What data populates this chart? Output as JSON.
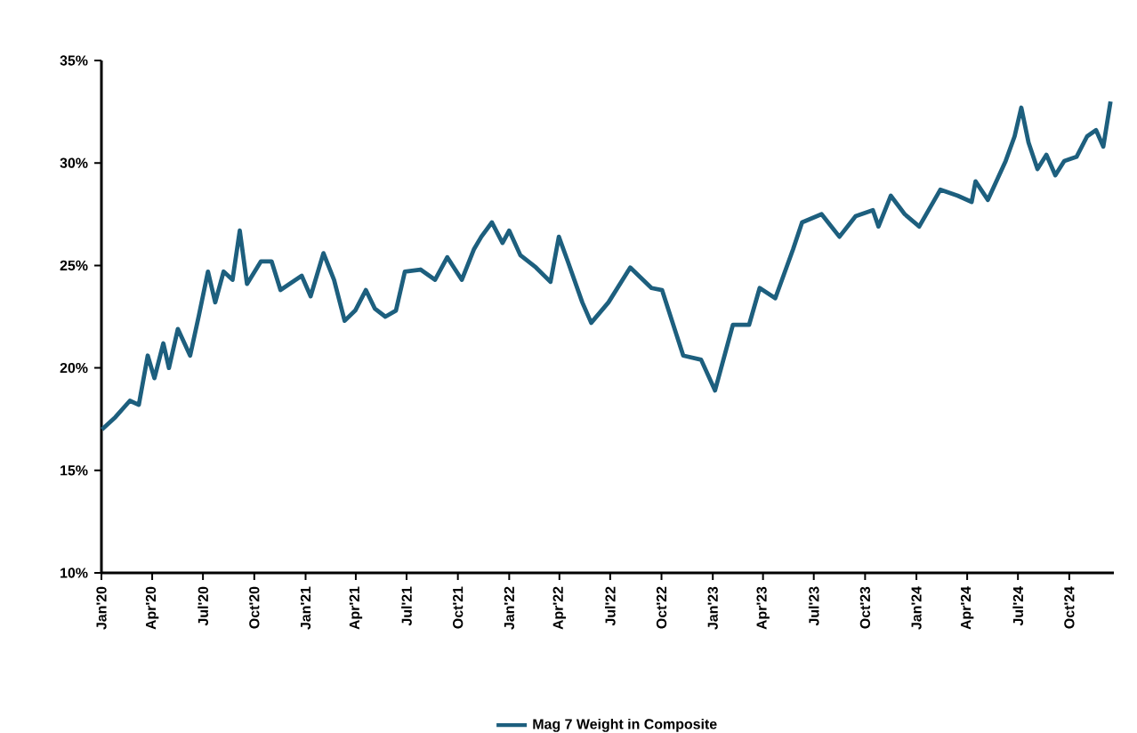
{
  "chart_data": {
    "type": "line",
    "x": [
      "2020-01-02",
      "2020-01-26",
      "2020-02-21",
      "2020-03-08",
      "2020-03-24",
      "2020-04-05",
      "2020-04-21",
      "2020-05-01",
      "2020-05-17",
      "2020-06-08",
      "2020-06-24",
      "2020-07-10",
      "2020-07-23",
      "2020-08-07",
      "2020-08-23",
      "2020-09-05",
      "2020-09-18",
      "2020-10-13",
      "2020-11-01",
      "2020-11-17",
      "2020-12-25",
      "2021-01-10",
      "2021-02-02",
      "2021-02-21",
      "2021-03-12",
      "2021-03-31",
      "2021-04-19",
      "2021-05-05",
      "2021-05-24",
      "2021-06-12",
      "2021-06-28",
      "2021-07-26",
      "2021-08-21",
      "2021-09-12",
      "2021-10-08",
      "2021-10-30",
      "2021-11-12",
      "2021-12-01",
      "2021-12-20",
      "2022-01-01",
      "2022-01-21",
      "2022-02-18",
      "2022-03-16",
      "2022-03-31",
      "2022-04-16",
      "2022-05-12",
      "2022-05-28",
      "2022-06-28",
      "2022-08-06",
      "2022-09-13",
      "2022-10-02",
      "2022-11-09",
      "2022-12-11",
      "2023-01-05",
      "2023-02-06",
      "2023-03-07",
      "2023-03-26",
      "2023-04-23",
      "2023-05-25",
      "2023-06-10",
      "2023-07-15",
      "2023-08-16",
      "2023-09-14",
      "2023-10-15",
      "2023-10-25",
      "2023-11-16",
      "2023-12-11",
      "2024-01-06",
      "2024-02-13",
      "2024-03-15",
      "2024-04-09",
      "2024-04-16",
      "2024-05-08",
      "2024-06-09",
      "2024-06-25",
      "2024-07-07",
      "2024-07-20",
      "2024-08-05",
      "2024-08-21",
      "2024-09-06",
      "2024-09-22",
      "2024-10-14",
      "2024-11-02",
      "2024-11-18",
      "2024-12-01",
      "2024-12-14"
    ],
    "series": [
      {
        "name": "Mag 7 Weight in Composite",
        "color": "#1d5f7e",
        "values": [
          17.0,
          17.6,
          18.4,
          18.2,
          20.6,
          19.5,
          21.2,
          20.0,
          21.9,
          20.6,
          22.6,
          24.7,
          23.2,
          24.7,
          24.3,
          26.7,
          24.1,
          25.2,
          25.2,
          23.8,
          24.5,
          23.5,
          25.6,
          24.3,
          22.3,
          22.8,
          23.8,
          22.9,
          22.5,
          22.8,
          24.7,
          24.8,
          24.3,
          25.4,
          24.3,
          25.8,
          26.4,
          27.1,
          26.1,
          26.7,
          25.5,
          24.9,
          24.2,
          26.4,
          25.2,
          23.2,
          22.2,
          23.2,
          24.9,
          23.9,
          23.8,
          20.6,
          20.4,
          18.9,
          22.1,
          22.1,
          23.9,
          23.4,
          25.8,
          27.1,
          27.5,
          26.4,
          27.4,
          27.7,
          26.9,
          28.4,
          27.5,
          26.9,
          28.7,
          28.4,
          28.1,
          29.1,
          28.2,
          30.1,
          31.3,
          32.7,
          31.0,
          29.7,
          30.4,
          29.4,
          30.1,
          30.3,
          31.3,
          31.6,
          30.8,
          33.0
        ]
      }
    ],
    "xlim": [
      "2020-01-01",
      "2024-12-20"
    ],
    "xticks": [
      {
        "value": "2020-01-01",
        "label": "Jan'20"
      },
      {
        "value": "2020-04-01",
        "label": "Apr'20"
      },
      {
        "value": "2020-07-01",
        "label": "Jul'20"
      },
      {
        "value": "2020-10-01",
        "label": "Oct'20"
      },
      {
        "value": "2021-01-01",
        "label": "Jan'21"
      },
      {
        "value": "2021-04-01",
        "label": "Apr'21"
      },
      {
        "value": "2021-07-01",
        "label": "Jul'21"
      },
      {
        "value": "2021-10-01",
        "label": "Oct'21"
      },
      {
        "value": "2022-01-01",
        "label": "Jan'22"
      },
      {
        "value": "2022-04-01",
        "label": "Apr'22"
      },
      {
        "value": "2022-07-01",
        "label": "Jul'22"
      },
      {
        "value": "2022-10-01",
        "label": "Oct'22"
      },
      {
        "value": "2023-01-01",
        "label": "Jan'23"
      },
      {
        "value": "2023-04-01",
        "label": "Apr'23"
      },
      {
        "value": "2023-07-01",
        "label": "Jul'23"
      },
      {
        "value": "2023-10-01",
        "label": "Oct'23"
      },
      {
        "value": "2024-01-01",
        "label": "Jan'24"
      },
      {
        "value": "2024-04-01",
        "label": "Apr'24"
      },
      {
        "value": "2024-07-01",
        "label": "Jul'24"
      },
      {
        "value": "2024-10-01",
        "label": "Oct'24"
      }
    ],
    "ylim": [
      10,
      35
    ],
    "yticks": [
      {
        "value": 10,
        "label": "10%"
      },
      {
        "value": 15,
        "label": "15%"
      },
      {
        "value": 20,
        "label": "20%"
      },
      {
        "value": 25,
        "label": "25%"
      },
      {
        "value": 30,
        "label": "30%"
      },
      {
        "value": 35,
        "label": "35%"
      }
    ],
    "grid": false,
    "legend": "bottom",
    "marker": "none",
    "line_style": "solid"
  }
}
